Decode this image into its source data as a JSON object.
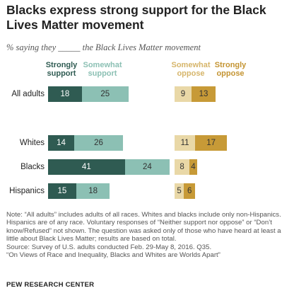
{
  "title": "Blacks express strong support for the Black Lives Matter movement",
  "subtitle": "% saying they _____ the Black Lives Matter movement",
  "colors": {
    "strongly_support": "#2f5b52",
    "somewhat_support": "#8cc0b4",
    "somewhat_oppose": "#e9d8a7",
    "strongly_oppose": "#c79a37",
    "legend_somewhat_oppose": "#d6b56a",
    "legend_strongly_oppose": "#c49432"
  },
  "legend": {
    "strongly_support": "Strongly support",
    "somewhat_support": "Somewhat support",
    "somewhat_oppose": "Somewhat oppose",
    "strongly_oppose": "Strongly oppose"
  },
  "chart_data": {
    "type": "bar",
    "orientation": "horizontal",
    "stacked": true,
    "categories": [
      "All adults",
      "Whites",
      "Blacks",
      "Hispanics"
    ],
    "series": [
      {
        "name": "Strongly support",
        "values": [
          18,
          14,
          41,
          15
        ]
      },
      {
        "name": "Somewhat support",
        "values": [
          25,
          26,
          24,
          18
        ]
      },
      {
        "name": "Somewhat oppose",
        "values": [
          9,
          11,
          8,
          5
        ]
      },
      {
        "name": "Strongly oppose",
        "values": [
          13,
          17,
          4,
          6
        ]
      }
    ]
  },
  "notes": [
    "Note: “All adults” includes adults of all races. Whites and blacks include only non-Hispanics.",
    "Hispanics are of any race. Voluntary responses of “Neither support nor oppose” or “Don’t",
    "know/Refused” not shown. The question was asked only of those who have heard at least a",
    "little about Black Lives Matter; results are based on total.",
    "Source: Survey of U.S. adults conducted Feb. 29-May 8, 2016. Q35.",
    "“On Views of Race and Inequality, Blacks and Whites are Worlds Apart”"
  ],
  "brand": "PEW RESEARCH CENTER"
}
